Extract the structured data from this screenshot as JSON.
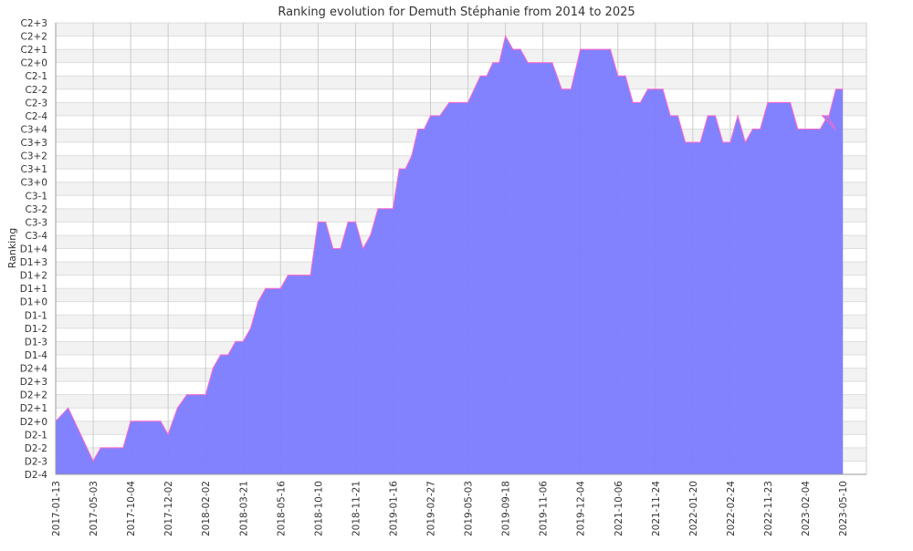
{
  "chart_data": {
    "type": "area",
    "title": "Ranking evolution for Demuth Stéphanie from 2014 to 2025",
    "xlabel": "",
    "ylabel": "Ranking",
    "y_levels": [
      "D2-4",
      "D2-3",
      "D2-2",
      "D2-1",
      "D2+0",
      "D2+1",
      "D2+2",
      "D2+3",
      "D2+4",
      "D1-4",
      "D1-3",
      "D1-2",
      "D1-1",
      "D1+0",
      "D1+1",
      "D1+2",
      "D1+3",
      "D1+4",
      "C3-4",
      "C3-3",
      "C3-2",
      "C3-1",
      "C3+0",
      "C3+1",
      "C3+2",
      "C3+3",
      "C3+4",
      "C2-4",
      "C2-3",
      "C2-2",
      "C2-1",
      "C2+0",
      "C2+1",
      "C2+2",
      "C2+3"
    ],
    "x_tick_labels": [
      "2017-01-13",
      "2017-05-03",
      "2017-10-04",
      "2017-12-02",
      "2018-02-02",
      "2018-03-21",
      "2018-05-16",
      "2018-10-10",
      "2018-11-21",
      "2019-01-16",
      "2019-02-27",
      "2019-05-03",
      "2019-09-18",
      "2019-11-06",
      "2019-12-04",
      "2021-10-06",
      "2021-11-24",
      "2022-01-20",
      "2022-02-24",
      "2022-11-23",
      "2023-02-04",
      "2023-05-10"
    ],
    "grid": true,
    "colors": {
      "fill": "#7b7bff",
      "line": "#ff66cc",
      "grid": "#cccccc",
      "band": "#f2f2f2"
    },
    "series": [
      {
        "values": [
          {
            "x": "2017-01-13",
            "y": "D2+0"
          },
          {
            "x": "2017-01-13",
            "y": "D2+1"
          },
          {
            "x": "2017-01-13",
            "y": "D2-1"
          },
          {
            "x": "2017-05-03",
            "y": "D2-3"
          },
          {
            "x": "2017-05-03",
            "y": "D2-2"
          },
          {
            "x": "2017-05-03",
            "y": "D2-2"
          },
          {
            "x": "2017-05-03",
            "y": "D2-2"
          },
          {
            "x": "2017-05-03",
            "y": "D2-2"
          },
          {
            "x": "2017-10-04",
            "y": "D2+0"
          },
          {
            "x": "2017-10-04",
            "y": "D2+0"
          },
          {
            "x": "2017-10-04",
            "y": "D2+0"
          },
          {
            "x": "2017-10-04",
            "y": "D2+0"
          },
          {
            "x": "2017-10-04",
            "y": "D2+0"
          },
          {
            "x": "2017-12-02",
            "y": "D2-1"
          },
          {
            "x": "2017-12-02",
            "y": "D2+1"
          },
          {
            "x": "2017-12-02",
            "y": "D2+2"
          },
          {
            "x": "2017-12-02",
            "y": "D2+2"
          },
          {
            "x": "2018-02-02",
            "y": "D2+2"
          },
          {
            "x": "2018-02-02",
            "y": "D2+4"
          },
          {
            "x": "2018-02-02",
            "y": "D1-4"
          },
          {
            "x": "2018-02-02",
            "y": "D1-4"
          },
          {
            "x": "2018-02-02",
            "y": "D1-3"
          },
          {
            "x": "2018-03-21",
            "y": "D1-3"
          },
          {
            "x": "2018-03-21",
            "y": "D1-2"
          },
          {
            "x": "2018-03-21",
            "y": "D1+0"
          },
          {
            "x": "2018-03-21",
            "y": "D1+1"
          },
          {
            "x": "2018-03-21",
            "y": "D1+1"
          },
          {
            "x": "2018-05-16",
            "y": "D1+1"
          },
          {
            "x": "2018-05-16",
            "y": "D1+2"
          },
          {
            "x": "2018-05-16",
            "y": "D1+2"
          },
          {
            "x": "2018-05-16",
            "y": "D1+2"
          },
          {
            "x": "2018-05-16",
            "y": "D1+2"
          },
          {
            "x": "2018-10-10",
            "y": "C3-3"
          },
          {
            "x": "2018-10-10",
            "y": "C3-3"
          },
          {
            "x": "2018-10-10",
            "y": "D1+4"
          },
          {
            "x": "2018-10-10",
            "y": "D1+4"
          },
          {
            "x": "2018-10-10",
            "y": "C3-3"
          },
          {
            "x": "2018-11-21",
            "y": "C3-3"
          },
          {
            "x": "2018-11-21",
            "y": "D1+4"
          },
          {
            "x": "2018-11-21",
            "y": "C3-4"
          },
          {
            "x": "2018-11-21",
            "y": "C3-2"
          },
          {
            "x": "2018-11-21",
            "y": "C3-2"
          },
          {
            "x": "2019-01-16",
            "y": "C3-2"
          },
          {
            "x": "2019-01-16",
            "y": "C3+1"
          },
          {
            "x": "2019-01-16",
            "y": "C3+1"
          },
          {
            "x": "2019-01-16",
            "y": "C3+2"
          },
          {
            "x": "2019-01-16",
            "y": "C3+4"
          },
          {
            "x": "2019-01-16",
            "y": "C3+4"
          },
          {
            "x": "2019-02-27",
            "y": "C2-4"
          },
          {
            "x": "2019-02-27",
            "y": "C2-4"
          },
          {
            "x": "2019-02-27",
            "y": "C2-3"
          },
          {
            "x": "2019-02-27",
            "y": "C2-3"
          },
          {
            "x": "2019-05-03",
            "y": "C2-3"
          },
          {
            "x": "2019-05-03",
            "y": "C2-2"
          },
          {
            "x": "2019-05-03",
            "y": "C2-1"
          },
          {
            "x": "2019-05-03",
            "y": "C2-1"
          },
          {
            "x": "2019-05-03",
            "y": "C2+0"
          },
          {
            "x": "2019-05-03",
            "y": "C2+0"
          },
          {
            "x": "2019-09-18",
            "y": "C2+2"
          },
          {
            "x": "2019-09-18",
            "y": "C2+1"
          },
          {
            "x": "2019-09-18",
            "y": "C2+1"
          },
          {
            "x": "2019-09-18",
            "y": "C2+0"
          },
          {
            "x": "2019-09-18",
            "y": "C2+0"
          },
          {
            "x": "2019-11-06",
            "y": "C2+0"
          },
          {
            "x": "2019-11-06",
            "y": "C2+0"
          },
          {
            "x": "2019-11-06",
            "y": "C2-2"
          },
          {
            "x": "2019-11-06",
            "y": "C2-2"
          },
          {
            "x": "2019-12-04",
            "y": "C2+1"
          },
          {
            "x": "2019-12-04",
            "y": "C2+1"
          },
          {
            "x": "2019-12-04",
            "y": "C2+1"
          },
          {
            "x": "2019-12-04",
            "y": "C2+1"
          },
          {
            "x": "2019-12-04",
            "y": "C2+1"
          },
          {
            "x": "2021-10-06",
            "y": "C2-1"
          },
          {
            "x": "2021-10-06",
            "y": "C2-1"
          },
          {
            "x": "2021-10-06",
            "y": "C2-3"
          },
          {
            "x": "2021-10-06",
            "y": "C2-3"
          },
          {
            "x": "2021-10-06",
            "y": "C2-2"
          },
          {
            "x": "2021-11-24",
            "y": "C2-2"
          },
          {
            "x": "2021-11-24",
            "y": "C2-2"
          },
          {
            "x": "2021-11-24",
            "y": "C2-4"
          },
          {
            "x": "2021-11-24",
            "y": "C2-4"
          },
          {
            "x": "2021-11-24",
            "y": "C3+3"
          },
          {
            "x": "2022-01-20",
            "y": "C3+3"
          },
          {
            "x": "2022-01-20",
            "y": "C3+3"
          },
          {
            "x": "2022-01-20",
            "y": "C2-4"
          },
          {
            "x": "2022-01-20",
            "y": "C2-4"
          },
          {
            "x": "2022-01-20",
            "y": "C3+3"
          },
          {
            "x": "2022-02-24",
            "y": "C3+3"
          },
          {
            "x": "2022-02-24",
            "y": "C2-4"
          },
          {
            "x": "2022-02-24",
            "y": "C3+3"
          },
          {
            "x": "2022-02-24",
            "y": "C3+4"
          },
          {
            "x": "2022-02-24",
            "y": "C3+4"
          },
          {
            "x": "2022-11-23",
            "y": "C2-3"
          },
          {
            "x": "2022-11-23",
            "y": "C2-3"
          },
          {
            "x": "2022-11-23",
            "y": "C2-3"
          },
          {
            "x": "2022-11-23",
            "y": "C2-3"
          },
          {
            "x": "2022-11-23",
            "y": "C3+4"
          },
          {
            "x": "2023-02-04",
            "y": "C3+4"
          },
          {
            "x": "2023-02-04",
            "y": "C3+4"
          },
          {
            "x": "2023-02-04",
            "y": "C3+4"
          },
          {
            "x": "2023-02-04",
            "y": "C2-4"
          },
          {
            "x": "2023-02-04",
            "y": "C3+4"
          },
          {
            "x": "2023-05-10",
            "y": "C2-4"
          },
          {
            "x": "2023-05-10",
            "y": "C2-4"
          },
          {
            "x": "2023-05-10",
            "y": "C2-2"
          },
          {
            "x": "2023-05-10",
            "y": "C2-2"
          }
        ]
      }
    ]
  }
}
